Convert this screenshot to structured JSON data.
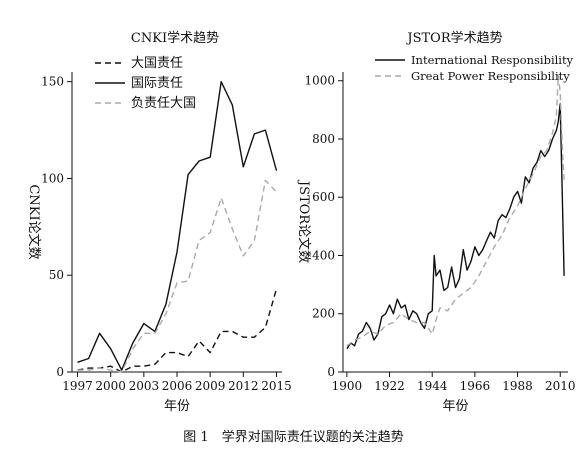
{
  "caption": "图 1　学界对国际责任议题的关注趋势",
  "chart_data": [
    {
      "type": "line",
      "title": "CNKI学术趋势",
      "xlabel": "年份",
      "ylabel": "CNKI论文数",
      "xlim": [
        1996.5,
        2015.5
      ],
      "ylim": [
        0,
        155
      ],
      "xticks": [
        "1997",
        "2000",
        "2003",
        "2006",
        "2009",
        "2012",
        "2015"
      ],
      "yticks": [
        "0",
        "50",
        "100",
        "150"
      ],
      "legend_position": "top-left",
      "x": [
        1997,
        1998,
        1999,
        2000,
        2001,
        2002,
        2003,
        2004,
        2005,
        2006,
        2007,
        2008,
        2009,
        2010,
        2011,
        2012,
        2013,
        2014,
        2015
      ],
      "series": [
        {
          "name": "大国责任",
          "style": "dashed",
          "color": "#111111",
          "values": [
            1,
            2,
            2,
            3,
            0,
            3,
            3,
            4,
            10,
            10,
            8,
            16,
            10,
            21,
            21,
            18,
            18,
            23,
            43
          ]
        },
        {
          "name": "国际责任",
          "style": "solid",
          "color": "#111111",
          "values": [
            5,
            7,
            20,
            12,
            1,
            15,
            25,
            21,
            35,
            62,
            102,
            109,
            111,
            150,
            138,
            106,
            123,
            125,
            104
          ]
        },
        {
          "name": "负责任大国",
          "style": "dashed",
          "color": "#aaaaaa",
          "values": [
            1,
            1,
            2,
            1,
            0,
            12,
            20,
            20,
            30,
            46,
            47,
            68,
            72,
            90,
            74,
            60,
            68,
            99,
            93
          ]
        }
      ]
    },
    {
      "type": "line",
      "title": "JSTOR学术趋势",
      "xlabel": "年份",
      "ylabel": "JSTOR论文数",
      "xlim": [
        1898,
        2014
      ],
      "ylim": [
        0,
        1030
      ],
      "xticks": [
        "1900",
        "1922",
        "1944",
        "1966",
        "1988",
        "2010"
      ],
      "yticks": [
        "0",
        "200",
        "400",
        "600",
        "800",
        "1000"
      ],
      "legend_position": "top",
      "series": [
        {
          "name": "International Responsibility",
          "style": "solid",
          "color": "#111111",
          "x": [
            1900,
            1902,
            1904,
            1906,
            1908,
            1910,
            1912,
            1914,
            1916,
            1918,
            1920,
            1922,
            1924,
            1926,
            1928,
            1930,
            1932,
            1934,
            1936,
            1938,
            1940,
            1942,
            1944,
            1945,
            1946,
            1948,
            1950,
            1952,
            1954,
            1956,
            1958,
            1960,
            1962,
            1964,
            1966,
            1968,
            1970,
            1972,
            1974,
            1976,
            1978,
            1980,
            1982,
            1984,
            1986,
            1988,
            1990,
            1992,
            1994,
            1996,
            1998,
            2000,
            2002,
            2004,
            2006,
            2008,
            2009,
            2010,
            2011,
            2012
          ],
          "values": [
            80,
            100,
            90,
            130,
            140,
            170,
            150,
            110,
            130,
            190,
            200,
            230,
            200,
            250,
            220,
            230,
            180,
            210,
            200,
            170,
            150,
            200,
            210,
            400,
            330,
            350,
            280,
            290,
            360,
            290,
            320,
            420,
            350,
            380,
            430,
            400,
            420,
            450,
            480,
            460,
            520,
            540,
            530,
            560,
            600,
            620,
            580,
            670,
            650,
            700,
            720,
            760,
            740,
            760,
            800,
            830,
            860,
            920,
            620,
            330
          ]
        },
        {
          "name": "Great Power Responsibility",
          "style": "dashed",
          "color": "#aaaaaa",
          "x": [
            1900,
            1904,
            1908,
            1912,
            1916,
            1920,
            1924,
            1928,
            1932,
            1936,
            1940,
            1944,
            1946,
            1948,
            1952,
            1956,
            1960,
            1964,
            1968,
            1972,
            1976,
            1980,
            1984,
            1988,
            1992,
            1996,
            2000,
            2003,
            2006,
            2008,
            2009,
            2010,
            2011,
            2012
          ],
          "values": [
            90,
            110,
            120,
            140,
            130,
            160,
            170,
            200,
            180,
            170,
            170,
            130,
            180,
            220,
            210,
            250,
            270,
            290,
            330,
            380,
            430,
            470,
            530,
            570,
            630,
            680,
            740,
            760,
            820,
            880,
            1020,
            960,
            780,
            660
          ]
        }
      ]
    }
  ]
}
